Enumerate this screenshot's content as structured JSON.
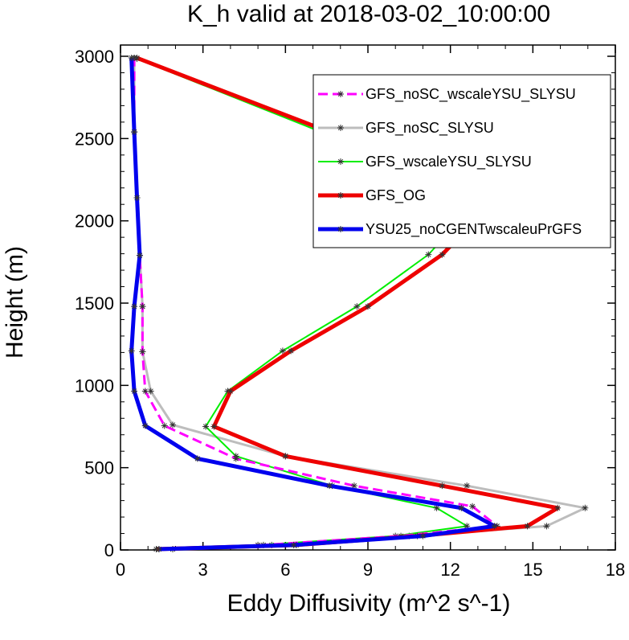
{
  "chart_data": {
    "type": "line",
    "title": "K_h valid at 2018-03-02_10:00:00",
    "xlabel": "Eddy Diffusivity (m^2 s^-1)",
    "ylabel": "Height (m)",
    "xlim": [
      0,
      18
    ],
    "ylim": [
      0,
      3000
    ],
    "xticks": [
      0,
      3,
      6,
      9,
      12,
      15,
      18
    ],
    "yticks": [
      0,
      500,
      1000,
      1500,
      2000,
      2500,
      3000
    ],
    "grid": false,
    "legend_position": "top-right",
    "series": [
      {
        "name": "GFS_noSC_wscaleYSU_SLYSU",
        "color": "#ff00ff",
        "dash": true,
        "width": 3,
        "points": [
          [
            1.9,
            5
          ],
          [
            5.2,
            30
          ],
          [
            10.2,
            85
          ],
          [
            13.7,
            145
          ],
          [
            12.8,
            265
          ],
          [
            8.5,
            390
          ],
          [
            4.2,
            555
          ],
          [
            1.6,
            755
          ],
          [
            0.9,
            965
          ],
          [
            0.8,
            1205
          ],
          [
            0.8,
            1480
          ],
          [
            0.7,
            1790
          ],
          [
            0.6,
            2140
          ],
          [
            0.5,
            2540
          ],
          [
            0.5,
            2990
          ]
        ]
      },
      {
        "name": "GFS_noSC_SLYSU",
        "color": "#bdbdbd",
        "dash": false,
        "width": 3,
        "points": [
          [
            1.9,
            5
          ],
          [
            5.5,
            30
          ],
          [
            10.5,
            85
          ],
          [
            15.5,
            145
          ],
          [
            16.9,
            255
          ],
          [
            12.6,
            390
          ],
          [
            6.0,
            570
          ],
          [
            1.9,
            760
          ],
          [
            1.1,
            965
          ],
          [
            0.8,
            1205
          ],
          [
            0.8,
            1480
          ],
          [
            0.7,
            1790
          ],
          [
            0.6,
            2140
          ],
          [
            0.5,
            2540
          ],
          [
            0.5,
            2990
          ]
        ]
      },
      {
        "name": "GFS_wscaleYSU_SLYSU",
        "color": "#00ee00",
        "dash": false,
        "width": 2,
        "points": [
          [
            1.4,
            5
          ],
          [
            5.0,
            30
          ],
          [
            10.0,
            85
          ],
          [
            12.6,
            145
          ],
          [
            11.5,
            255
          ],
          [
            7.7,
            390
          ],
          [
            4.2,
            570
          ],
          [
            3.1,
            750
          ],
          [
            3.9,
            965
          ],
          [
            5.9,
            1210
          ],
          [
            8.6,
            1480
          ],
          [
            11.2,
            1795
          ],
          [
            13.1,
            2140
          ],
          [
            7.3,
            2540
          ],
          [
            0.6,
            2985
          ]
        ]
      },
      {
        "name": "GFS_OG",
        "color": "#ee0000",
        "dash": false,
        "width": 5,
        "points": [
          [
            1.3,
            5
          ],
          [
            6.4,
            30
          ],
          [
            10.8,
            85
          ],
          [
            14.8,
            145
          ],
          [
            15.9,
            255
          ],
          [
            11.7,
            390
          ],
          [
            6.0,
            570
          ],
          [
            3.4,
            750
          ],
          [
            4.0,
            965
          ],
          [
            6.2,
            1210
          ],
          [
            9.0,
            1480
          ],
          [
            11.7,
            1795
          ],
          [
            13.7,
            2140
          ],
          [
            7.6,
            2540
          ],
          [
            0.6,
            2990
          ]
        ]
      },
      {
        "name": "YSU25_noCGENTwscaleuPrGFS",
        "color": "#0000ee",
        "dash": false,
        "width": 5,
        "points": [
          [
            1.4,
            5
          ],
          [
            6.3,
            30
          ],
          [
            11.0,
            85
          ],
          [
            13.6,
            145
          ],
          [
            12.4,
            255
          ],
          [
            7.6,
            390
          ],
          [
            2.8,
            555
          ],
          [
            0.9,
            755
          ],
          [
            0.5,
            965
          ],
          [
            0.4,
            1210
          ],
          [
            0.5,
            1480
          ],
          [
            0.7,
            1790
          ],
          [
            0.6,
            2140
          ],
          [
            0.5,
            2540
          ],
          [
            0.4,
            2990
          ]
        ]
      }
    ]
  }
}
